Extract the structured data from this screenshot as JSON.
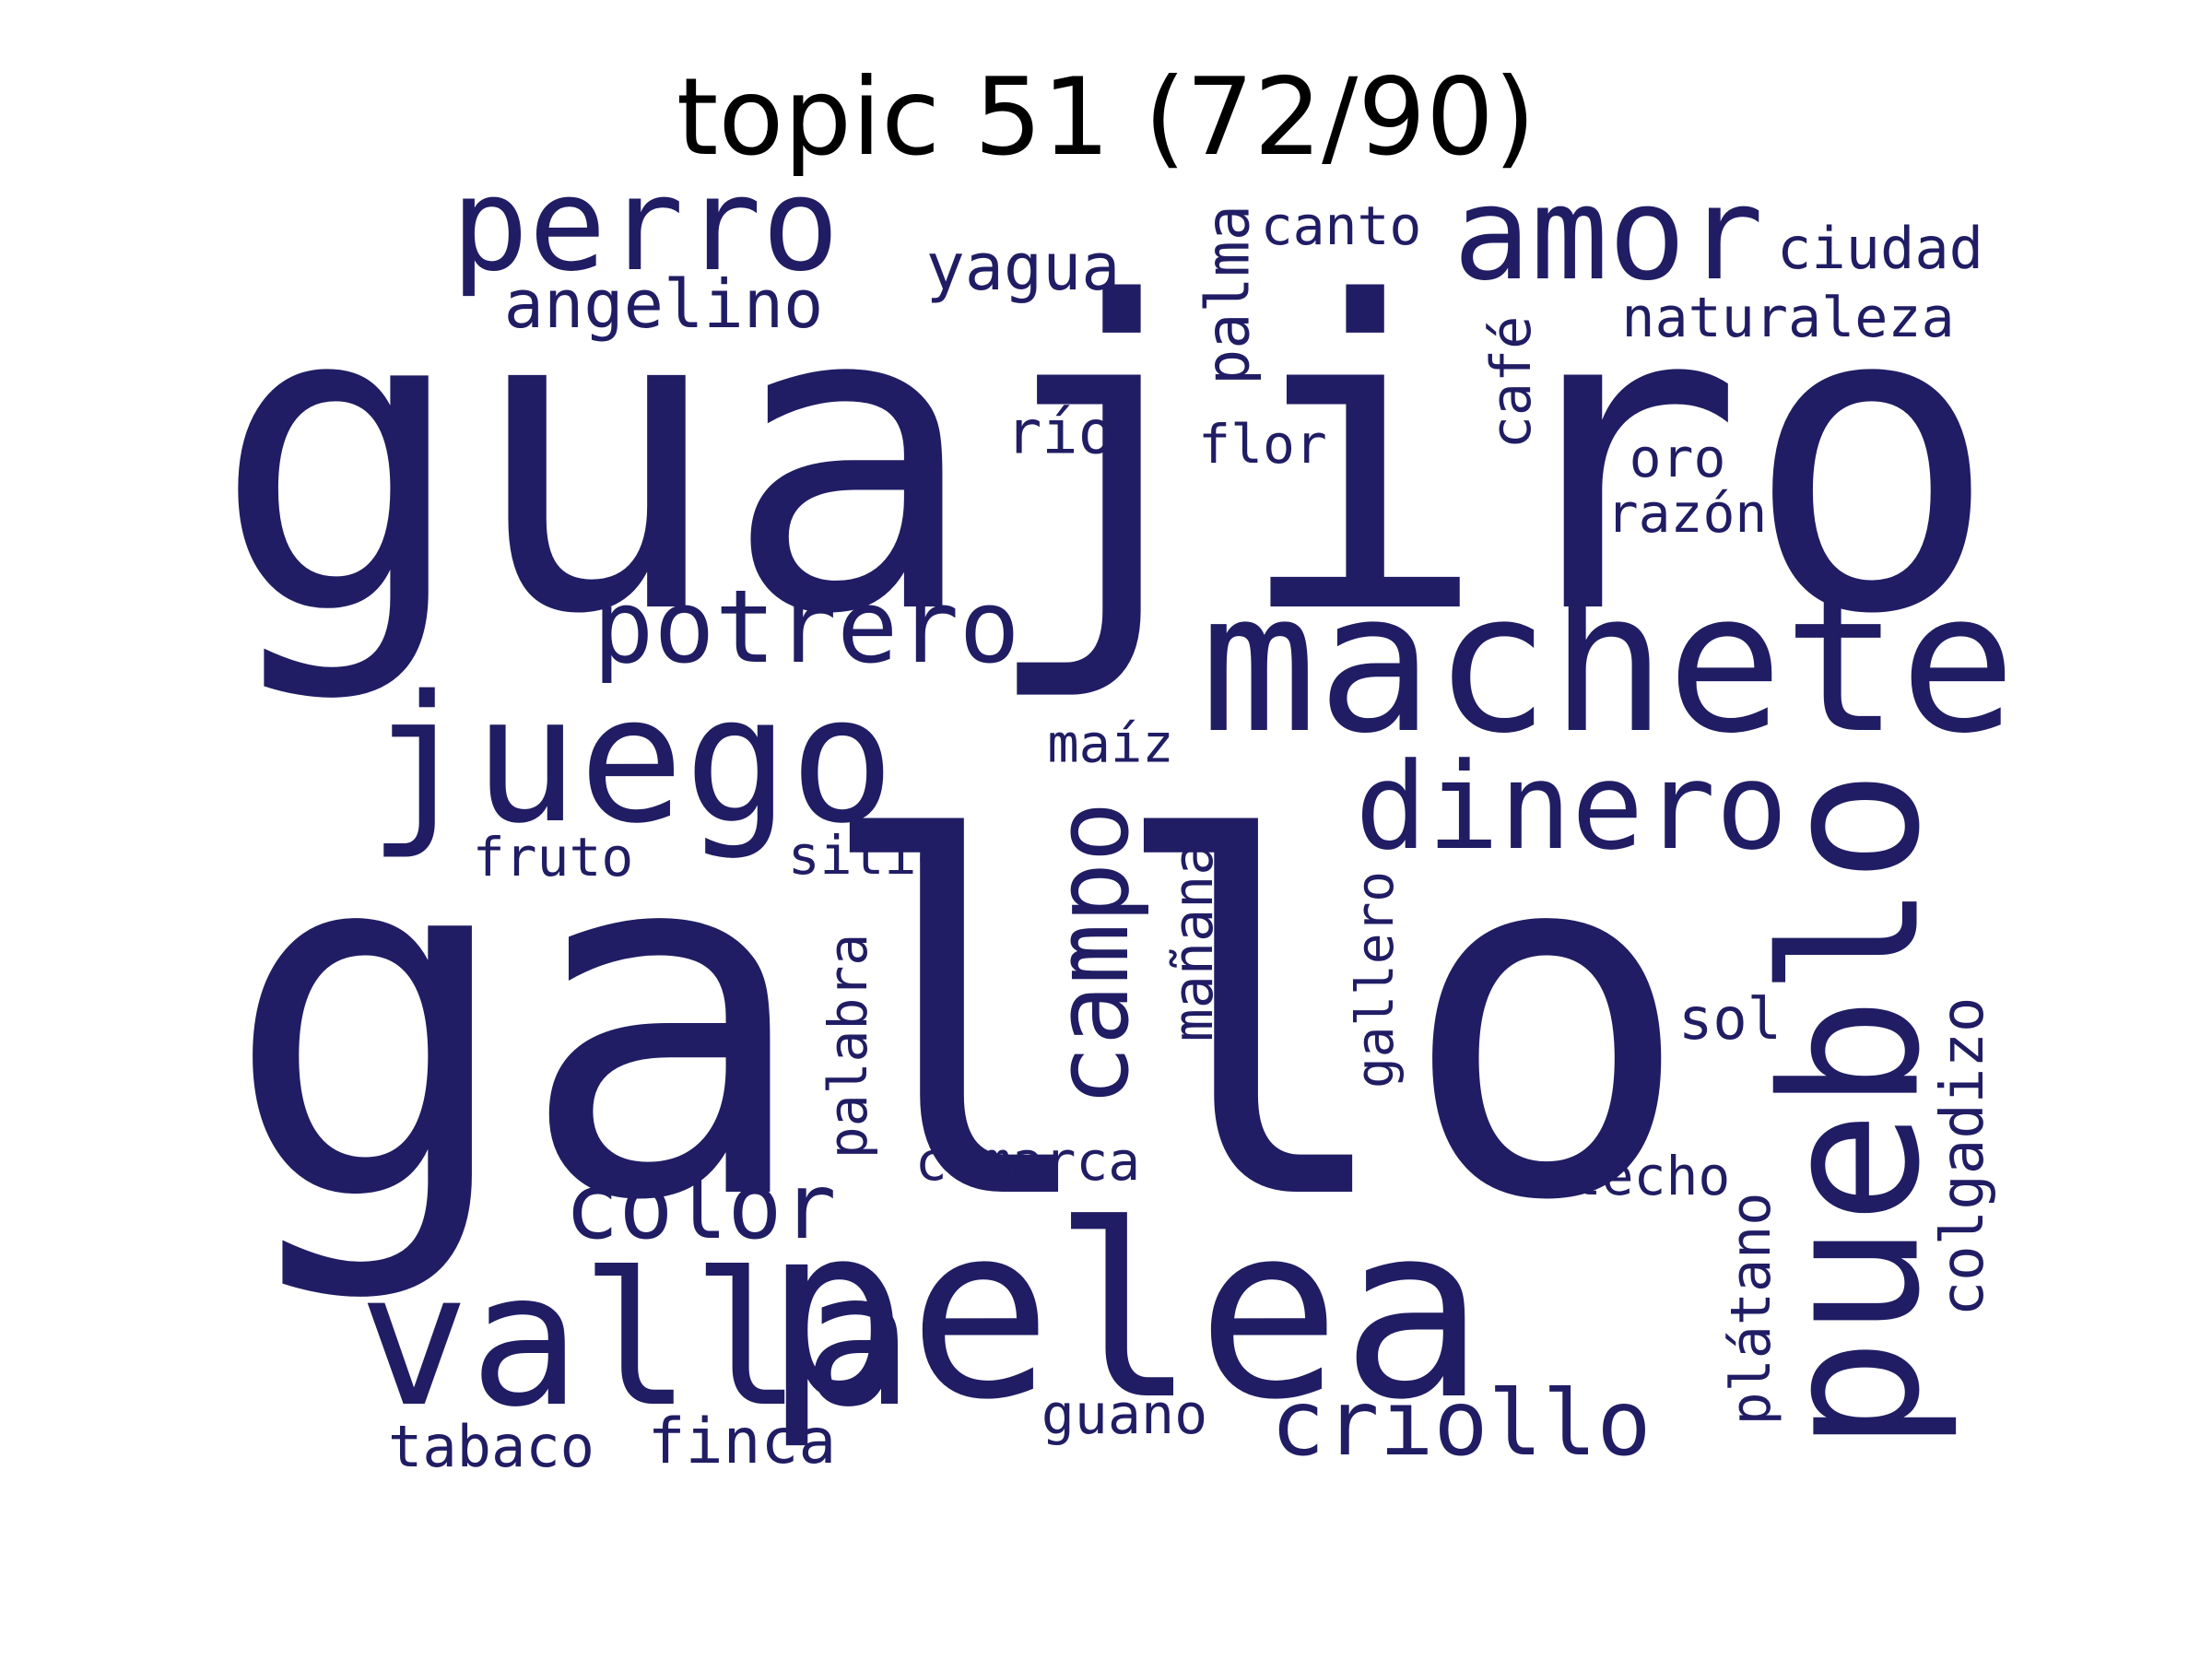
{
  "title": "topic 51 (72/90)",
  "word_color": "#201d64",
  "title_color": "#000000",
  "background": "#ffffff",
  "words": [
    {
      "text": "guajiro",
      "orientation": "horizontal"
    },
    {
      "text": "gallo",
      "orientation": "horizontal"
    },
    {
      "text": "pelea",
      "orientation": "horizontal"
    },
    {
      "text": "machete",
      "orientation": "horizontal"
    },
    {
      "text": "pueblo",
      "orientation": "vertical"
    },
    {
      "text": "juego",
      "orientation": "horizontal"
    },
    {
      "text": "valla",
      "orientation": "horizontal"
    },
    {
      "text": "perro",
      "orientation": "horizontal"
    },
    {
      "text": "amor",
      "orientation": "horizontal"
    },
    {
      "text": "dinero",
      "orientation": "horizontal"
    },
    {
      "text": "potrero",
      "orientation": "horizontal"
    },
    {
      "text": "campo",
      "orientation": "vertical"
    },
    {
      "text": "criollo",
      "orientation": "horizontal"
    },
    {
      "text": "color",
      "orientation": "horizontal"
    },
    {
      "text": "angelino",
      "orientation": "horizontal"
    },
    {
      "text": "yagua",
      "orientation": "horizontal"
    },
    {
      "text": "palma",
      "orientation": "vertical"
    },
    {
      "text": "canto",
      "orientation": "horizontal"
    },
    {
      "text": "ciudad",
      "orientation": "horizontal"
    },
    {
      "text": "naturaleza",
      "orientation": "horizontal"
    },
    {
      "text": "café",
      "orientation": "vertical"
    },
    {
      "text": "río",
      "orientation": "horizontal"
    },
    {
      "text": "flor",
      "orientation": "horizontal"
    },
    {
      "text": "oro",
      "orientation": "horizontal"
    },
    {
      "text": "razón",
      "orientation": "horizontal"
    },
    {
      "text": "maíz",
      "orientation": "horizontal"
    },
    {
      "text": "mañana",
      "orientation": "vertical"
    },
    {
      "text": "gallero",
      "orientation": "vertical"
    },
    {
      "text": "fruto",
      "orientation": "horizontal"
    },
    {
      "text": "sitio",
      "orientation": "horizontal"
    },
    {
      "text": "palabra",
      "orientation": "vertical"
    },
    {
      "text": "sol",
      "orientation": "horizontal"
    },
    {
      "text": "colgadizo",
      "orientation": "vertical"
    },
    {
      "text": "comarca",
      "orientation": "horizontal"
    },
    {
      "text": "techo",
      "orientation": "horizontal"
    },
    {
      "text": "plátano",
      "orientation": "vertical"
    },
    {
      "text": "tabaco",
      "orientation": "horizontal"
    },
    {
      "text": "finca",
      "orientation": "horizontal"
    },
    {
      "text": "guano",
      "orientation": "horizontal"
    }
  ]
}
